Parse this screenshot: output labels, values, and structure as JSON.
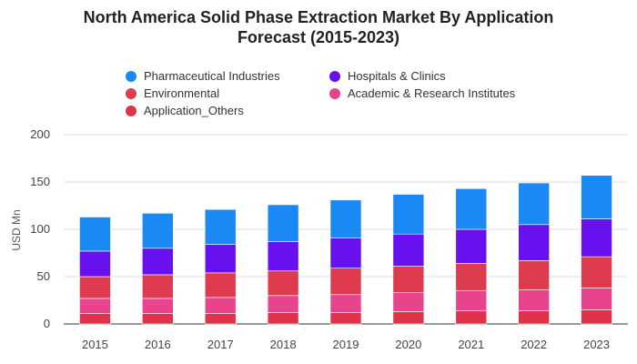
{
  "chart_data": {
    "type": "bar",
    "stacked": true,
    "title_line1": "North America Solid Phase Extraction Market By Application",
    "title_line2": "Forecast (2015-2023)",
    "ylabel": "USD Mn",
    "xlabel": "",
    "ylim": [
      0,
      200
    ],
    "yticks": [
      "0",
      "50",
      "100",
      "150",
      "200"
    ],
    "categories": [
      "2015",
      "2016",
      "2017",
      "2018",
      "2019",
      "2020",
      "2021",
      "2022",
      "2023"
    ],
    "series": [
      {
        "name": "Application_Others",
        "color": "#e0324a",
        "values": [
          11,
          11,
          11,
          12,
          12,
          13,
          14,
          14,
          15
        ]
      },
      {
        "name": "Academic & Research Institutes",
        "color": "#e8448e",
        "values": [
          16,
          16,
          17,
          18,
          19,
          20,
          21,
          22,
          23
        ]
      },
      {
        "name": "Environmental",
        "color": "#df3b4e",
        "values": [
          23,
          25,
          26,
          26,
          28,
          28,
          29,
          31,
          33
        ]
      },
      {
        "name": "Hospitals & Clinics",
        "color": "#6611ee",
        "values": [
          27,
          28,
          30,
          31,
          32,
          34,
          36,
          38,
          40
        ]
      },
      {
        "name": "Pharmaceutical Industries",
        "color": "#1a88f5",
        "values": [
          36,
          37,
          37,
          39,
          40,
          42,
          43,
          44,
          46
        ]
      }
    ],
    "legend": [
      {
        "name": "Pharmaceutical Industries",
        "color": "#1a88f5"
      },
      {
        "name": "Hospitals & Clinics",
        "color": "#6611ee"
      },
      {
        "name": "Environmental",
        "color": "#df3b4e"
      },
      {
        "name": "Academic & Research Institutes",
        "color": "#e8448e"
      },
      {
        "name": "Application_Others",
        "color": "#e0324a"
      }
    ],
    "legend_position": "top"
  }
}
